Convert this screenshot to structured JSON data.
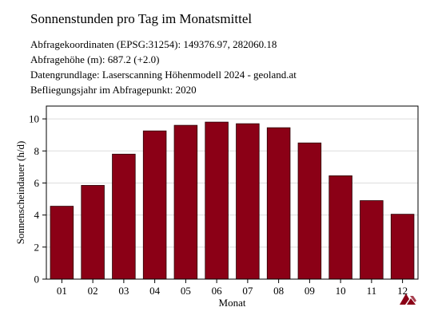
{
  "header": {
    "title": "Sonnenstunden pro Tag im Monatsmittel",
    "info_lines": [
      "Abfragekoordinaten (EPSG:31254): 149376.97, 282060.18",
      "Abfragehöhe (m): 687.2 (+2.0)",
      "Datengrundlage: Laserscanning Höhenmodell 2024 - geoland.at",
      "Befliegungsjahr im Abfragepunkt: 2020"
    ]
  },
  "logo": {
    "icon": "geoland-logo-icon",
    "color": "#8b0016"
  },
  "colors": {
    "bar": "#8b0016",
    "grid": "#dddddd",
    "axis": "#000000"
  },
  "chart_data": {
    "type": "bar",
    "categories": [
      "01",
      "02",
      "03",
      "04",
      "05",
      "06",
      "07",
      "08",
      "09",
      "10",
      "11",
      "12"
    ],
    "values": [
      4.55,
      5.85,
      7.8,
      9.25,
      9.6,
      9.8,
      9.7,
      9.45,
      8.5,
      6.45,
      4.9,
      4.05
    ],
    "xlabel": "Monat",
    "ylabel": "Sonnenscheindauer (h/d)",
    "ylim": [
      0,
      10.8
    ],
    "yticks": [
      "0",
      "2",
      "4",
      "6",
      "8",
      "10"
    ],
    "grid": true
  }
}
